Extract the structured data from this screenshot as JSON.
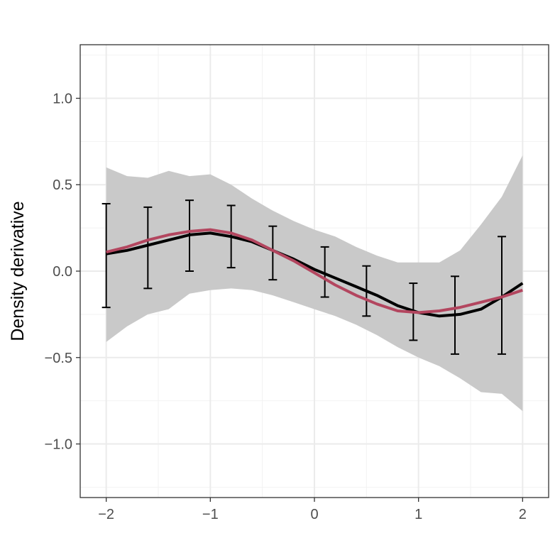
{
  "chart_data": {
    "type": "line",
    "title": "",
    "xlabel": "",
    "ylabel": "Density derivative",
    "xlim": [
      -2.25,
      2.25
    ],
    "ylim": [
      -1.31,
      1.31
    ],
    "grid": true,
    "x_ticks": [
      {
        "value": -2,
        "label": "−2"
      },
      {
        "value": -1,
        "label": "−1"
      },
      {
        "value": 0,
        "label": "0"
      },
      {
        "value": 1,
        "label": "1"
      },
      {
        "value": 2,
        "label": "2"
      }
    ],
    "y_ticks": [
      {
        "value": -1.0,
        "label": "−1.0"
      },
      {
        "value": -0.5,
        "label": "−0.5"
      },
      {
        "value": 0.0,
        "label": "0.0"
      },
      {
        "value": 0.5,
        "label": "0.5"
      },
      {
        "value": 1.0,
        "label": "1.0"
      }
    ],
    "band": {
      "color": "#c9c9c9",
      "x": [
        -2.0,
        -1.8,
        -1.6,
        -1.4,
        -1.2,
        -1.0,
        -0.8,
        -0.6,
        -0.4,
        -0.2,
        0.0,
        0.2,
        0.4,
        0.6,
        0.8,
        1.0,
        1.2,
        1.4,
        1.6,
        1.8,
        2.0
      ],
      "upper": [
        0.6,
        0.55,
        0.54,
        0.58,
        0.55,
        0.56,
        0.5,
        0.42,
        0.35,
        0.29,
        0.24,
        0.2,
        0.14,
        0.09,
        0.05,
        0.05,
        0.05,
        0.12,
        0.27,
        0.43,
        0.67
      ],
      "lower": [
        -0.41,
        -0.32,
        -0.25,
        -0.22,
        -0.13,
        -0.11,
        -0.1,
        -0.11,
        -0.14,
        -0.18,
        -0.22,
        -0.26,
        -0.31,
        -0.37,
        -0.44,
        -0.5,
        -0.55,
        -0.62,
        -0.7,
        -0.71,
        -0.81
      ]
    },
    "series": [
      {
        "color": "#000000",
        "x": [
          -2.0,
          -1.8,
          -1.6,
          -1.4,
          -1.2,
          -1.0,
          -0.8,
          -0.6,
          -0.4,
          -0.2,
          0.0,
          0.2,
          0.4,
          0.6,
          0.8,
          1.0,
          1.2,
          1.4,
          1.6,
          1.8,
          2.0
        ],
        "y": [
          0.1,
          0.12,
          0.15,
          0.18,
          0.21,
          0.22,
          0.2,
          0.17,
          0.12,
          0.07,
          0.01,
          -0.04,
          -0.09,
          -0.14,
          -0.2,
          -0.24,
          -0.26,
          -0.25,
          -0.22,
          -0.15,
          -0.07
        ]
      },
      {
        "color": "#b3465f",
        "x": [
          -2.0,
          -1.8,
          -1.6,
          -1.4,
          -1.2,
          -1.0,
          -0.8,
          -0.6,
          -0.4,
          -0.2,
          0.0,
          0.2,
          0.4,
          0.6,
          0.8,
          1.0,
          1.2,
          1.4,
          1.6,
          1.8,
          2.0
        ],
        "y": [
          0.11,
          0.14,
          0.18,
          0.21,
          0.23,
          0.24,
          0.22,
          0.18,
          0.12,
          0.06,
          -0.01,
          -0.08,
          -0.14,
          -0.19,
          -0.23,
          -0.24,
          -0.23,
          -0.21,
          -0.18,
          -0.15,
          -0.11
        ]
      }
    ],
    "error_bars": {
      "color": "#000000",
      "x": [
        -2.0,
        -1.6,
        -1.2,
        -0.8,
        -0.4,
        0.1,
        0.5,
        0.95,
        1.35,
        1.8
      ],
      "low": [
        -0.21,
        -0.1,
        0.0,
        0.02,
        -0.05,
        -0.15,
        -0.26,
        -0.4,
        -0.48,
        -0.48
      ],
      "high": [
        0.39,
        0.37,
        0.41,
        0.38,
        0.26,
        0.14,
        0.03,
        -0.07,
        -0.03,
        0.2
      ]
    }
  }
}
